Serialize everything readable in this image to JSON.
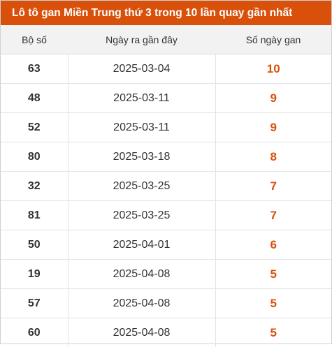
{
  "title": "Lô tô gan Miền Trung thứ 3 trong 10 lần quay gần nhất",
  "colors": {
    "accent": "#d9500b",
    "header_bg": "#f2f2f2"
  },
  "table": {
    "headers": [
      "Bộ số",
      "Ngày ra gần đây",
      "Số ngày gan"
    ],
    "rows": [
      {
        "bo_so": "63",
        "ngay": "2025-03-04",
        "so_ngay_gan": "10"
      },
      {
        "bo_so": "48",
        "ngay": "2025-03-11",
        "so_ngay_gan": "9"
      },
      {
        "bo_so": "52",
        "ngay": "2025-03-11",
        "so_ngay_gan": "9"
      },
      {
        "bo_so": "80",
        "ngay": "2025-03-18",
        "so_ngay_gan": "8"
      },
      {
        "bo_so": "32",
        "ngay": "2025-03-25",
        "so_ngay_gan": "7"
      },
      {
        "bo_so": "81",
        "ngay": "2025-03-25",
        "so_ngay_gan": "7"
      },
      {
        "bo_so": "50",
        "ngay": "2025-04-01",
        "so_ngay_gan": "6"
      },
      {
        "bo_so": "19",
        "ngay": "2025-04-08",
        "so_ngay_gan": "5"
      },
      {
        "bo_so": "57",
        "ngay": "2025-04-08",
        "so_ngay_gan": "5"
      },
      {
        "bo_so": "60",
        "ngay": "2025-04-08",
        "so_ngay_gan": "5"
      }
    ]
  }
}
